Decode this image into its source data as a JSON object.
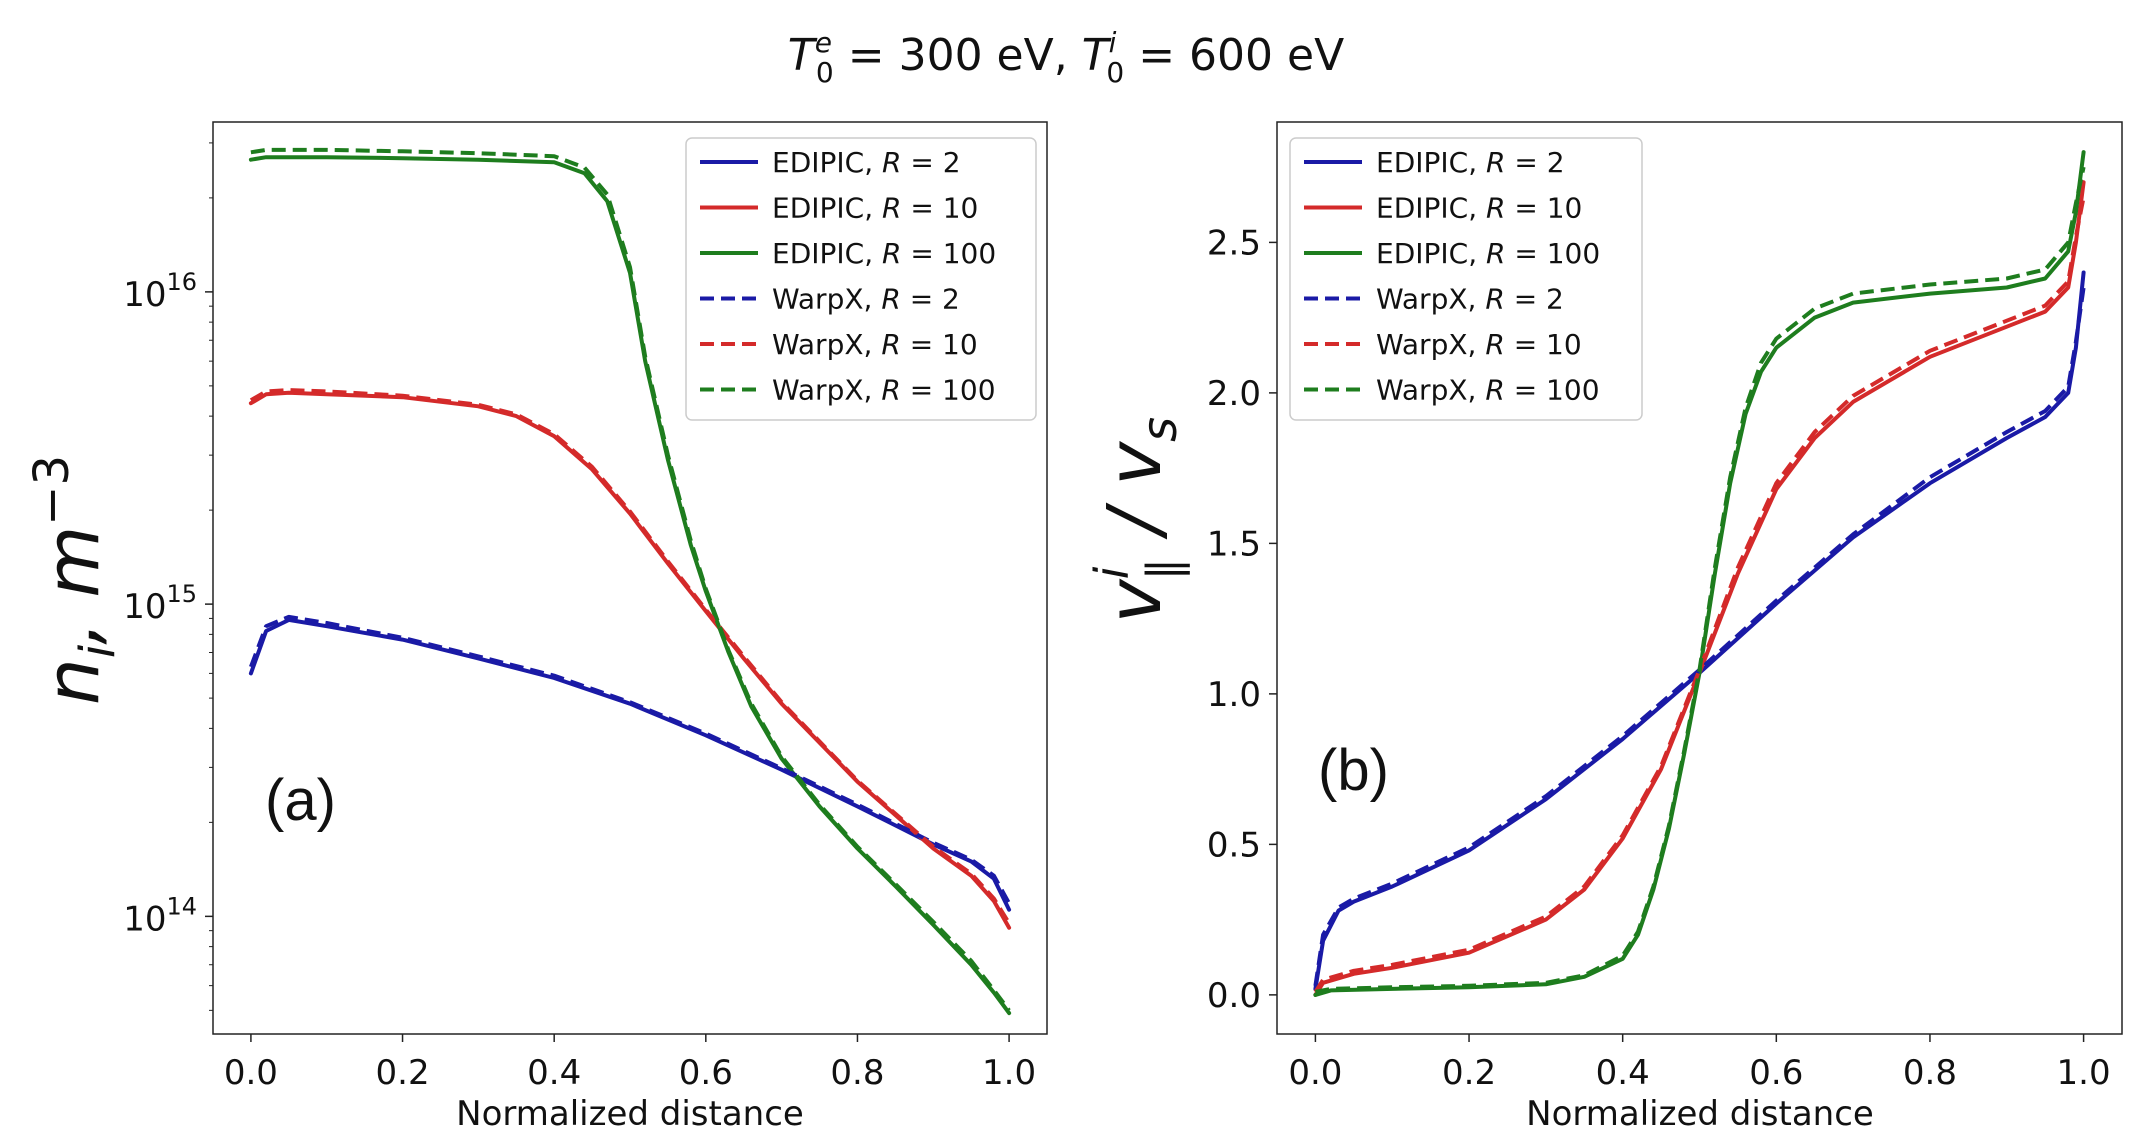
{
  "title": {
    "te_symbol": "T",
    "te_sup": "e",
    "te_sub": "0",
    "te_value": " = 300 eV, ",
    "ti_symbol": "T",
    "ti_sup": "i",
    "ti_sub": "0",
    "ti_value": " = 600 eV"
  },
  "colors": {
    "blue": "#1a1aa6",
    "red": "#d42a2a",
    "green": "#1e7d1e"
  },
  "chart_data": [
    {
      "type": "line",
      "panel_label": "(a)",
      "xlabel": "Normalized distance",
      "ylabel": {
        "base": "n",
        "sub": "i",
        "unit": ", m",
        "sup": "−3"
      },
      "yscale": "log",
      "xlim": [
        -0.05,
        1.05
      ],
      "ylim": [
        42000000000000.0,
        3.5e+16
      ],
      "xticks": [
        0.0,
        0.2,
        0.4,
        0.6,
        0.8,
        1.0
      ],
      "xtick_labels": [
        "0.0",
        "0.2",
        "0.4",
        "0.6",
        "0.8",
        "1.0"
      ],
      "yticks": [
        {
          "value": 100000000000000.0,
          "base": "10",
          "exp": "14"
        },
        {
          "value": 1000000000000000.0,
          "base": "10",
          "exp": "15"
        },
        {
          "value": 1e+16,
          "base": "10",
          "exp": "16"
        }
      ],
      "legend": {
        "position": "upper right",
        "labels": [
          {
            "prefix": "EDIPIC, ",
            "var": "R",
            "value": " = 2"
          },
          {
            "prefix": "EDIPIC, ",
            "var": "R",
            "value": " = 10"
          },
          {
            "prefix": "EDIPIC, ",
            "var": "R",
            "value": " = 100"
          },
          {
            "prefix": "WarpX, ",
            "var": "R",
            "value": " = 2"
          },
          {
            "prefix": "WarpX, ",
            "var": "R",
            "value": " = 10"
          },
          {
            "prefix": "WarpX, ",
            "var": "R",
            "value": " = 100"
          }
        ]
      },
      "series": [
        {
          "name": "EDIPIC, R = 2",
          "code": "EDIPIC",
          "color": "blue",
          "dash": false,
          "x": [
            0.0,
            0.02,
            0.05,
            0.1,
            0.2,
            0.3,
            0.4,
            0.5,
            0.6,
            0.7,
            0.8,
            0.9,
            0.95,
            0.98,
            1.0
          ],
          "y": [
            600000000000000.0,
            820000000000000.0,
            890000000000000.0,
            850000000000000.0,
            770000000000000.0,
            670000000000000.0,
            580000000000000.0,
            480000000000000.0,
            380000000000000.0,
            295000000000000.0,
            225000000000000.0,
            170000000000000.0,
            150000000000000.0,
            132000000000000.0,
            105000000000000.0
          ]
        },
        {
          "name": "EDIPIC, R = 10",
          "code": "EDIPIC",
          "color": "red",
          "dash": false,
          "x": [
            0.0,
            0.02,
            0.05,
            0.1,
            0.2,
            0.3,
            0.35,
            0.4,
            0.45,
            0.5,
            0.55,
            0.6,
            0.65,
            0.7,
            0.8,
            0.9,
            0.95,
            0.98,
            1.0
          ],
          "y": [
            4400000000000000.0,
            4700000000000000.0,
            4750000000000000.0,
            4700000000000000.0,
            4600000000000000.0,
            4300000000000000.0,
            4000000000000000.0,
            3450000000000000.0,
            2700000000000000.0,
            1950000000000000.0,
            1350000000000000.0,
            950000000000000.0,
            670000000000000.0,
            480000000000000.0,
            270000000000000.0,
            165000000000000.0,
            135000000000000.0,
            112000000000000.0,
            92000000000000.0
          ]
        },
        {
          "name": "EDIPIC, R = 100",
          "code": "EDIPIC",
          "color": "green",
          "dash": false,
          "x": [
            0.0,
            0.02,
            0.1,
            0.2,
            0.3,
            0.4,
            0.44,
            0.47,
            0.5,
            0.52,
            0.55,
            0.58,
            0.6,
            0.63,
            0.66,
            0.7,
            0.75,
            0.8,
            0.85,
            0.9,
            0.95,
            0.98,
            1.0
          ],
          "y": [
            2.65e+16,
            2.7e+16,
            2.7e+16,
            2.68e+16,
            2.65e+16,
            2.6e+16,
            2.4e+16,
            1.95e+16,
            1.15e+16,
            6000000000000000.0,
            2900000000000000.0,
            1550000000000000.0,
            1100000000000000.0,
            700000000000000.0,
            470000000000000.0,
            320000000000000.0,
            225000000000000.0,
            165000000000000.0,
            125000000000000.0,
            94000000000000.0,
            70000000000000.0,
            57000000000000.0,
            49000000000000.0
          ]
        },
        {
          "name": "WarpX, R = 2",
          "code": "WarpX",
          "color": "blue",
          "dash": true,
          "x": [
            0.0,
            0.02,
            0.05,
            0.1,
            0.2,
            0.3,
            0.4,
            0.5,
            0.6,
            0.7,
            0.8,
            0.9,
            0.95,
            0.98,
            1.0
          ],
          "y": [
            630000000000000.0,
            850000000000000.0,
            910000000000000.0,
            870000000000000.0,
            780000000000000.0,
            680000000000000.0,
            590000000000000.0,
            485000000000000.0,
            385000000000000.0,
            298000000000000.0,
            228000000000000.0,
            172000000000000.0,
            152000000000000.0,
            135000000000000.0,
            110000000000000.0
          ]
        },
        {
          "name": "WarpX, R = 10",
          "code": "WarpX",
          "color": "red",
          "dash": true,
          "x": [
            0.0,
            0.02,
            0.05,
            0.1,
            0.2,
            0.3,
            0.35,
            0.4,
            0.45,
            0.5,
            0.55,
            0.6,
            0.65,
            0.7,
            0.8,
            0.9,
            0.95,
            0.98,
            1.0
          ],
          "y": [
            4500000000000000.0,
            4800000000000000.0,
            4850000000000000.0,
            4800000000000000.0,
            4650000000000000.0,
            4350000000000000.0,
            4050000000000000.0,
            3500000000000000.0,
            2750000000000000.0,
            1980000000000000.0,
            1370000000000000.0,
            960000000000000.0,
            680000000000000.0,
            485000000000000.0,
            272000000000000.0,
            167000000000000.0,
            137000000000000.0,
            114000000000000.0,
            95000000000000.0
          ]
        },
        {
          "name": "WarpX, R = 100",
          "code": "WarpX",
          "color": "green",
          "dash": true,
          "x": [
            0.0,
            0.02,
            0.1,
            0.2,
            0.3,
            0.4,
            0.44,
            0.47,
            0.5,
            0.52,
            0.55,
            0.58,
            0.6,
            0.63,
            0.66,
            0.7,
            0.75,
            0.8,
            0.85,
            0.9,
            0.95,
            0.98,
            1.0
          ],
          "y": [
            2.8e+16,
            2.85e+16,
            2.85e+16,
            2.82e+16,
            2.78e+16,
            2.72e+16,
            2.5e+16,
            2.05e+16,
            1.2e+16,
            6200000000000000.0,
            3000000000000000.0,
            1600000000000000.0,
            1120000000000000.0,
            710000000000000.0,
            480000000000000.0,
            325000000000000.0,
            228000000000000.0,
            167000000000000.0,
            127000000000000.0,
            96000000000000.0,
            72000000000000.0,
            58000000000000.0,
            50000000000000.0
          ]
        }
      ]
    },
    {
      "type": "line",
      "panel_label": "(b)",
      "xlabel": "Normalized distance",
      "ylabel": {
        "base": "v",
        "sup": "i",
        "sub": "∥",
        "rest": " / v",
        "sub2": "s"
      },
      "yscale": "linear",
      "xlim": [
        -0.05,
        1.05
      ],
      "ylim": [
        -0.13,
        2.9
      ],
      "xticks": [
        0.0,
        0.2,
        0.4,
        0.6,
        0.8,
        1.0
      ],
      "xtick_labels": [
        "0.0",
        "0.2",
        "0.4",
        "0.6",
        "0.8",
        "1.0"
      ],
      "yticks": [
        0.0,
        0.5,
        1.0,
        1.5,
        2.0,
        2.5
      ],
      "ytick_labels": [
        "0.0",
        "0.5",
        "1.0",
        "1.5",
        "2.0",
        "2.5"
      ],
      "legend": {
        "position": "upper left",
        "labels": [
          {
            "prefix": "EDIPIC, ",
            "var": "R",
            "value": " = 2"
          },
          {
            "prefix": "EDIPIC, ",
            "var": "R",
            "value": " = 10"
          },
          {
            "prefix": "EDIPIC, ",
            "var": "R",
            "value": " = 100"
          },
          {
            "prefix": "WarpX, ",
            "var": "R",
            "value": " = 2"
          },
          {
            "prefix": "WarpX, ",
            "var": "R",
            "value": " = 10"
          },
          {
            "prefix": "WarpX, ",
            "var": "R",
            "value": " = 100"
          }
        ]
      },
      "series": [
        {
          "name": "EDIPIC, R = 2",
          "code": "EDIPIC",
          "color": "blue",
          "dash": false,
          "x": [
            0.0,
            0.01,
            0.03,
            0.05,
            0.1,
            0.2,
            0.3,
            0.4,
            0.5,
            0.6,
            0.7,
            0.8,
            0.9,
            0.95,
            0.98,
            0.99,
            1.0
          ],
          "y": [
            0.02,
            0.18,
            0.28,
            0.31,
            0.36,
            0.48,
            0.65,
            0.85,
            1.07,
            1.3,
            1.52,
            1.7,
            1.85,
            1.92,
            2.0,
            2.15,
            2.4
          ]
        },
        {
          "name": "EDIPIC, R = 10",
          "code": "EDIPIC",
          "color": "red",
          "dash": false,
          "x": [
            0.0,
            0.01,
            0.05,
            0.1,
            0.2,
            0.3,
            0.35,
            0.4,
            0.45,
            0.5,
            0.55,
            0.6,
            0.65,
            0.7,
            0.8,
            0.9,
            0.95,
            0.98,
            0.99,
            1.0
          ],
          "y": [
            0.0,
            0.04,
            0.07,
            0.09,
            0.14,
            0.25,
            0.35,
            0.52,
            0.75,
            1.07,
            1.4,
            1.68,
            1.85,
            1.97,
            2.12,
            2.22,
            2.27,
            2.35,
            2.5,
            2.7
          ]
        },
        {
          "name": "EDIPIC, R = 100",
          "code": "EDIPIC",
          "color": "green",
          "dash": false,
          "x": [
            0.0,
            0.02,
            0.1,
            0.2,
            0.3,
            0.35,
            0.4,
            0.42,
            0.44,
            0.46,
            0.48,
            0.5,
            0.52,
            0.54,
            0.56,
            0.58,
            0.6,
            0.65,
            0.7,
            0.8,
            0.9,
            0.95,
            0.98,
            0.99,
            1.0
          ],
          "y": [
            0.0,
            0.015,
            0.02,
            0.025,
            0.035,
            0.06,
            0.12,
            0.2,
            0.35,
            0.55,
            0.8,
            1.07,
            1.4,
            1.7,
            1.93,
            2.07,
            2.15,
            2.25,
            2.3,
            2.33,
            2.35,
            2.38,
            2.47,
            2.6,
            2.8
          ]
        },
        {
          "name": "WarpX, R = 2",
          "code": "WarpX",
          "color": "blue",
          "dash": true,
          "x": [
            0.0,
            0.01,
            0.03,
            0.05,
            0.1,
            0.2,
            0.3,
            0.4,
            0.5,
            0.6,
            0.7,
            0.8,
            0.9,
            0.95,
            0.98,
            0.99,
            1.0
          ],
          "y": [
            0.03,
            0.2,
            0.29,
            0.32,
            0.37,
            0.49,
            0.66,
            0.86,
            1.08,
            1.31,
            1.53,
            1.72,
            1.87,
            1.94,
            2.02,
            2.17,
            2.35
          ]
        },
        {
          "name": "WarpX, R = 10",
          "code": "WarpX",
          "color": "red",
          "dash": true,
          "x": [
            0.0,
            0.01,
            0.05,
            0.1,
            0.2,
            0.3,
            0.35,
            0.4,
            0.45,
            0.5,
            0.55,
            0.6,
            0.65,
            0.7,
            0.8,
            0.9,
            0.95,
            0.98,
            0.99,
            1.0
          ],
          "y": [
            0.01,
            0.05,
            0.08,
            0.1,
            0.15,
            0.26,
            0.36,
            0.53,
            0.76,
            1.08,
            1.42,
            1.7,
            1.87,
            1.99,
            2.14,
            2.24,
            2.29,
            2.37,
            2.52,
            2.65
          ]
        },
        {
          "name": "WarpX, R = 100",
          "code": "WarpX",
          "color": "green",
          "dash": true,
          "x": [
            0.0,
            0.02,
            0.1,
            0.2,
            0.3,
            0.35,
            0.4,
            0.42,
            0.44,
            0.46,
            0.48,
            0.5,
            0.52,
            0.54,
            0.56,
            0.58,
            0.6,
            0.65,
            0.7,
            0.8,
            0.9,
            0.95,
            0.98,
            0.99,
            1.0
          ],
          "y": [
            0.01,
            0.02,
            0.025,
            0.03,
            0.04,
            0.065,
            0.13,
            0.21,
            0.36,
            0.56,
            0.81,
            1.08,
            1.42,
            1.72,
            1.95,
            2.1,
            2.18,
            2.28,
            2.33,
            2.36,
            2.38,
            2.41,
            2.5,
            2.63,
            2.75
          ]
        }
      ]
    }
  ]
}
